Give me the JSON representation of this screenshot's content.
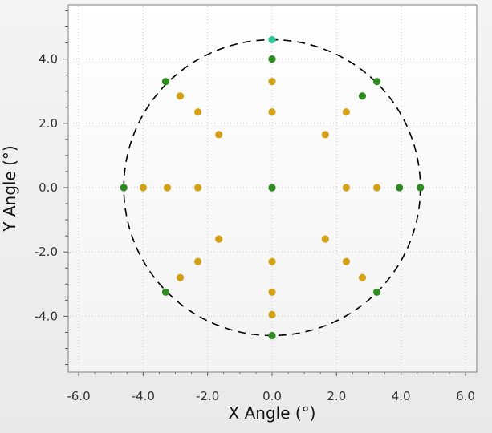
{
  "chart_data": {
    "type": "scatter",
    "xlabel": "X Angle (°)",
    "ylabel": "Y Angle (°)",
    "xlim": [
      -6.0,
      6.0
    ],
    "ylim": [
      -5.7,
      5.7
    ],
    "x_ticks": [
      -6.0,
      -4.0,
      -2.0,
      0.0,
      2.0,
      4.0,
      6.0
    ],
    "y_ticks": [
      -4.0,
      -2.0,
      0.0,
      2.0,
      4.0
    ],
    "x_tick_labels": [
      "-6.0",
      "-4.0",
      "-2.0",
      "0.0",
      "2.0",
      "4.0",
      "6.0"
    ],
    "y_tick_labels": [
      "-4.0",
      "-2.0",
      "0.0",
      "2.0",
      "4.0"
    ],
    "grid": true,
    "circle": {
      "center": [
        0.0,
        0.0
      ],
      "radius": 4.6,
      "style": "dashed",
      "color": "#000000"
    },
    "series": [
      {
        "color": "#2e8b1f",
        "points": [
          [
            0.0,
            4.0
          ],
          [
            0.0,
            0.0
          ],
          [
            0.0,
            -4.6
          ],
          [
            -4.6,
            0.0
          ],
          [
            4.6,
            0.0
          ],
          [
            3.95,
            0.0
          ],
          [
            -3.3,
            3.3
          ],
          [
            3.25,
            3.3
          ],
          [
            2.8,
            2.85
          ],
          [
            -3.3,
            -3.25
          ],
          [
            3.25,
            -3.25
          ]
        ]
      },
      {
        "color": "#d4a017",
        "points": [
          [
            0.0,
            3.3
          ],
          [
            0.0,
            2.35
          ],
          [
            0.0,
            -2.3
          ],
          [
            0.0,
            -3.25
          ],
          [
            0.0,
            -3.95
          ],
          [
            -4.0,
            0.0
          ],
          [
            -3.25,
            0.0
          ],
          [
            -2.3,
            0.0
          ],
          [
            2.3,
            0.0
          ],
          [
            3.25,
            0.0
          ],
          [
            -2.85,
            2.85
          ],
          [
            -2.3,
            2.35
          ],
          [
            2.3,
            2.35
          ],
          [
            -1.65,
            1.65
          ],
          [
            1.65,
            1.65
          ],
          [
            -1.65,
            -1.6
          ],
          [
            1.65,
            -1.6
          ],
          [
            -2.3,
            -2.3
          ],
          [
            2.3,
            -2.3
          ],
          [
            -2.85,
            -2.8
          ],
          [
            2.8,
            -2.8
          ]
        ]
      },
      {
        "color": "#2ec49c",
        "points": [
          [
            0.0,
            4.6
          ]
        ]
      }
    ]
  }
}
